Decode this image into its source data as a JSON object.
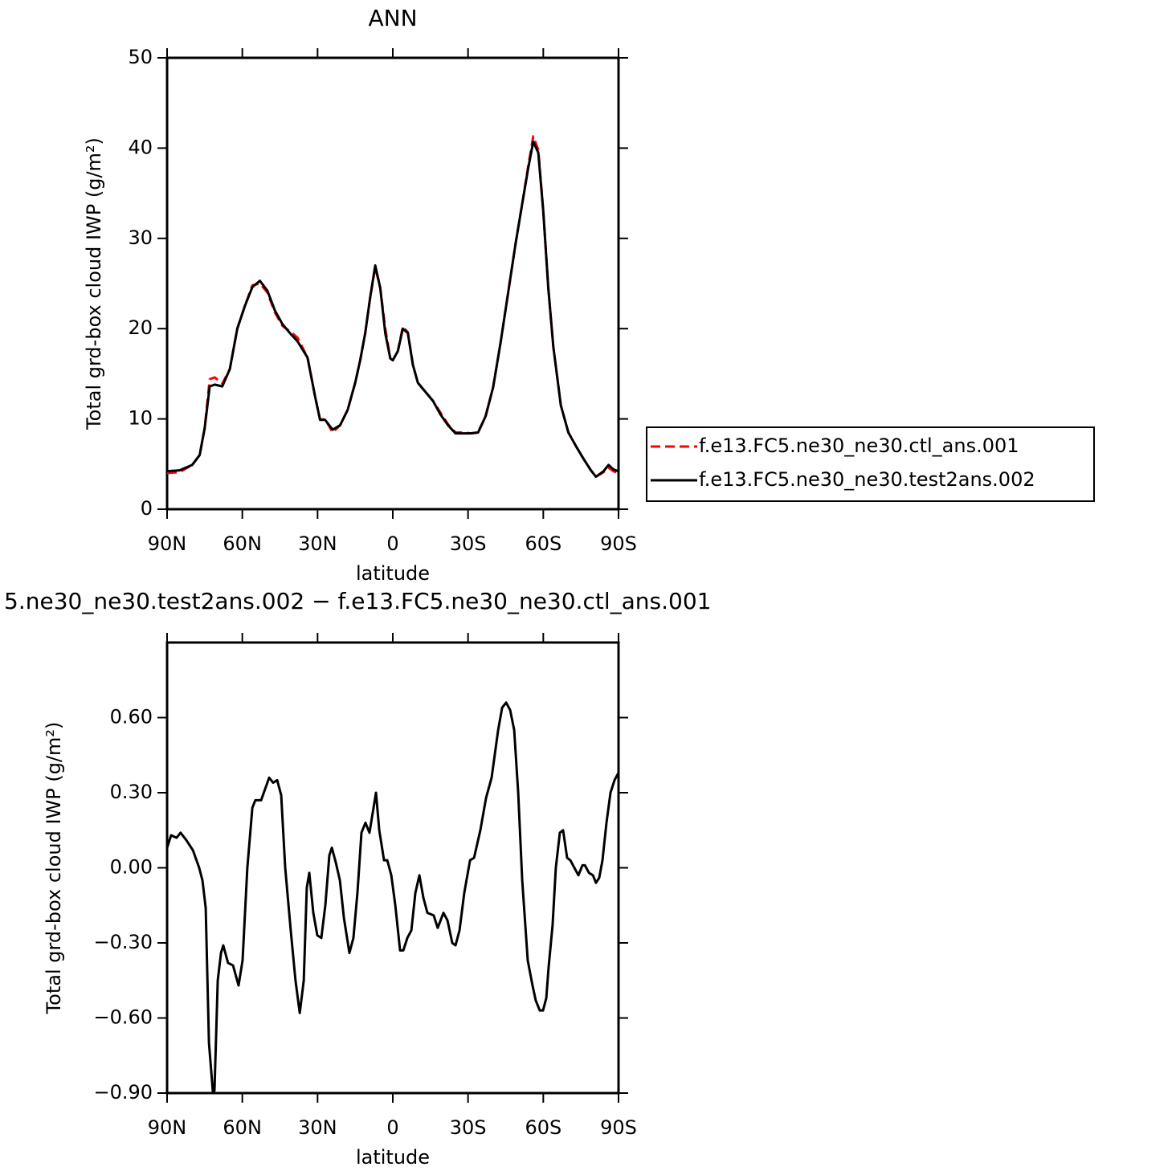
{
  "chart_data": [
    {
      "type": "line",
      "title": "ANN",
      "xlabel": "latitude",
      "ylabel": "Total grd-box cloud IWP (g/m²)",
      "x": [
        90,
        85,
        80,
        77,
        75,
        73,
        71,
        68,
        65,
        62,
        59,
        56,
        53,
        50,
        47,
        44,
        41,
        38,
        34,
        31,
        29,
        27,
        24,
        21,
        18,
        15,
        13,
        11,
        9,
        7,
        5,
        3,
        1,
        0,
        -2,
        -4,
        -6,
        -8,
        -10,
        -13,
        -16,
        -19,
        -22,
        -25,
        -28,
        -31,
        -34,
        -37,
        -40,
        -43,
        -46,
        -49,
        -52,
        -54,
        -56,
        -58,
        -60,
        -62,
        -64,
        -67,
        -70,
        -73,
        -76,
        -79,
        -81,
        -84,
        -86,
        -88,
        -90
      ],
      "series": [
        {
          "name": "f.e13.FC5.ne30_ne30.ctl_ans.001",
          "color": "#ff0000",
          "dash": "dashed",
          "values": [
            4.0,
            4.1,
            4.9,
            6.0,
            9.0,
            14.4,
            14.6,
            13.9,
            15.5,
            20.0,
            22.5,
            24.8,
            25.0,
            24.0,
            21.8,
            20.3,
            19.7,
            19.0,
            16.8,
            12.5,
            9.9,
            10.0,
            8.5,
            9.3,
            11.0,
            14.0,
            16.5,
            19.5,
            23.5,
            26.8,
            24.5,
            20.0,
            16.7,
            16.5,
            17.5,
            20.2,
            19.6,
            16.0,
            14.0,
            13.0,
            12.0,
            10.7,
            9.4,
            8.5,
            8.5,
            8.4,
            8.5,
            10.3,
            13.5,
            18.5,
            24.0,
            29.5,
            34.5,
            38.0,
            41.3,
            39.8,
            33.0,
            24.5,
            18.0,
            11.5,
            8.5,
            7.0,
            5.6,
            4.3,
            3.6,
            4.1,
            4.6,
            4.2,
            4.0
          ]
        },
        {
          "name": "f.e13.FC5.ne30_ne30.test2ans.002",
          "color": "#000000",
          "dash": "solid",
          "values": [
            4.2,
            4.3,
            4.9,
            6.0,
            9.0,
            13.6,
            13.8,
            13.6,
            15.5,
            20.0,
            22.5,
            24.6,
            25.3,
            24.2,
            22.0,
            20.5,
            19.5,
            18.6,
            16.8,
            12.5,
            9.9,
            9.9,
            8.8,
            9.3,
            11.0,
            14.0,
            16.5,
            19.5,
            23.5,
            27.0,
            24.5,
            19.5,
            16.7,
            16.5,
            17.5,
            20.0,
            19.5,
            16.0,
            14.0,
            13.0,
            12.0,
            10.5,
            9.3,
            8.4,
            8.4,
            8.4,
            8.5,
            10.3,
            13.5,
            18.5,
            24.0,
            29.5,
            34.5,
            37.8,
            40.7,
            39.5,
            33.0,
            24.5,
            18.0,
            11.5,
            8.5,
            7.0,
            5.6,
            4.3,
            3.6,
            4.2,
            4.9,
            4.4,
            4.2
          ]
        }
      ],
      "xlim": [
        90,
        -90
      ],
      "ylim": [
        0,
        50
      ],
      "xticks": [
        {
          "value": 90,
          "label": "90N"
        },
        {
          "value": 60,
          "label": "60N"
        },
        {
          "value": 30,
          "label": "30N"
        },
        0,
        {
          "value": -30,
          "label": "30S"
        },
        {
          "value": -60,
          "label": "60S"
        },
        {
          "value": -90,
          "label": "90S"
        }
      ],
      "yticks": [
        0,
        10,
        20,
        30,
        40,
        50
      ],
      "legend": "right"
    },
    {
      "type": "line",
      "title": "5.ne30_ne30.test2ans.002 − f.e13.FC5.ne30_ne30.ctl_ans.001",
      "xlabel": "latitude",
      "ylabel": "Total grd-box cloud IWP (g/m²)",
      "x": [
        90,
        88.4,
        86.2,
        84.6,
        82.3,
        79.7,
        77.2,
        75.9,
        74.6,
        73.3,
        71.7,
        71.1,
        69.8,
        68.5,
        67.6,
        65.7,
        63.7,
        61.5,
        59.9,
        58,
        56,
        54.8,
        52.5,
        49.3,
        47.7,
        46.1,
        44.5,
        42.9,
        40.7,
        38.8,
        37.1,
        35.5,
        34.3,
        33.3,
        31.7,
        30.1,
        28.5,
        26.9,
        25.3,
        24.3,
        22.7,
        21.1,
        19.5,
        17.3,
        15.7,
        14.1,
        12.5,
        10.9,
        9.3,
        8,
        6.7,
        5.4,
        3.5,
        2.2,
        0.6,
        -1,
        -2.9,
        -4.2,
        -5.8,
        -7.4,
        -9,
        -10.6,
        -12.2,
        -13.8,
        -16.3,
        -17.9,
        -20.2,
        -21.8,
        -23.7,
        -25,
        -26.6,
        -28.5,
        -30.8,
        -32.4,
        -34.9,
        -37.2,
        -39.4,
        -42,
        -43.6,
        -45.2,
        -46.8,
        -48.4,
        -50,
        -51.6,
        -53.8,
        -55.7,
        -57,
        -58.6,
        -59.9,
        -61.2,
        -62.1,
        -63.7,
        -65,
        -66.6,
        -67.9,
        -69.5,
        -70.8,
        -72.4,
        -74,
        -75.6,
        -76.6,
        -78.2,
        -79.8,
        -81,
        -82.3,
        -83.6,
        -85.2,
        -86.8,
        -88.4,
        -90
      ],
      "series": [
        {
          "color": "#000000",
          "dash": "solid",
          "values": [
            0.08,
            0.13,
            0.12,
            0.14,
            0.11,
            0.07,
            0.0,
            -0.05,
            -0.16,
            -0.7,
            -0.9,
            -0.89,
            -0.45,
            -0.34,
            -0.31,
            -0.38,
            -0.39,
            -0.47,
            -0.37,
            0.0,
            0.24,
            0.27,
            0.27,
            0.36,
            0.34,
            0.35,
            0.29,
            0.0,
            -0.25,
            -0.45,
            -0.58,
            -0.45,
            -0.08,
            -0.02,
            -0.18,
            -0.27,
            -0.28,
            -0.15,
            0.05,
            0.08,
            0.02,
            -0.05,
            -0.2,
            -0.34,
            -0.28,
            -0.1,
            0.14,
            0.18,
            0.14,
            0.22,
            0.3,
            0.15,
            0.03,
            0.03,
            -0.03,
            -0.15,
            -0.33,
            -0.33,
            -0.28,
            -0.25,
            -0.1,
            -0.03,
            -0.12,
            -0.18,
            -0.19,
            -0.24,
            -0.18,
            -0.21,
            -0.3,
            -0.31,
            -0.25,
            -0.1,
            0.03,
            0.04,
            0.15,
            0.28,
            0.36,
            0.55,
            0.64,
            0.66,
            0.63,
            0.55,
            0.3,
            -0.05,
            -0.37,
            -0.47,
            -0.53,
            -0.57,
            -0.57,
            -0.52,
            -0.4,
            -0.23,
            0.0,
            0.14,
            0.15,
            0.04,
            0.03,
            0.0,
            -0.03,
            0.01,
            0.01,
            -0.02,
            -0.03,
            -0.06,
            -0.04,
            0.03,
            0.18,
            0.3,
            0.35,
            0.38
          ]
        }
      ],
      "xlim": [
        90,
        -90
      ],
      "ylim": [
        -0.9,
        0.9
      ],
      "xticks": [
        {
          "value": 90,
          "label": "90N"
        },
        {
          "value": 60,
          "label": "60N"
        },
        {
          "value": 30,
          "label": "30N"
        },
        0,
        {
          "value": -30,
          "label": "30S"
        },
        {
          "value": -60,
          "label": "60S"
        },
        {
          "value": -90,
          "label": "90S"
        }
      ],
      "yticks": [
        {
          "value": 0.6,
          "label": "0.60"
        },
        {
          "value": 0.3,
          "label": "0.30"
        },
        {
          "value": 0,
          "label": "0.00"
        },
        {
          "value": -0.3,
          "label": "−0.30"
        },
        {
          "value": -0.6,
          "label": "−0.60"
        },
        {
          "value": -0.9,
          "label": "−0.90"
        }
      ]
    }
  ]
}
